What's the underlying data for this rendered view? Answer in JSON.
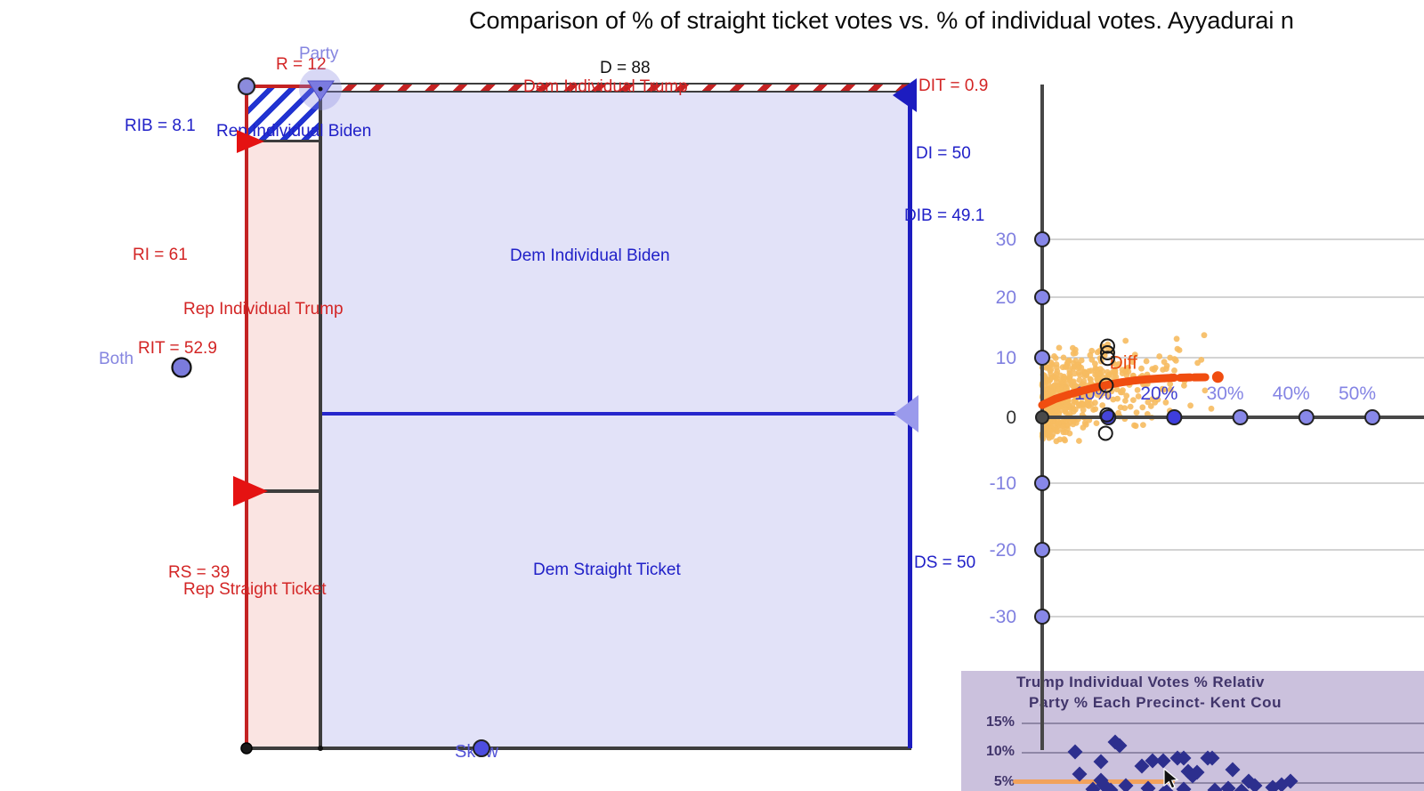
{
  "title": "Comparison of % of straight ticket votes vs. % of individual votes. Ayyadurai n",
  "mosaic": {
    "values": {
      "r": "R = 12",
      "d": "D = 88",
      "rib": "RIB = 8.1",
      "ri": "RI = 61",
      "rit": "RIT = 52.9",
      "rs": "RS = 39",
      "dit": "DIT = 0.9",
      "di": "DI = 50",
      "dib": "DIB = 49.1",
      "ds": "DS = 50"
    },
    "regions": {
      "dem_individual_trump": "Dem Individual Trump",
      "rep_individual_biden": "Rep Individual Biden",
      "dem_individual_biden": "Dem Individual Biden",
      "rep_individual_trump": "Rep Individual Trump",
      "dem_straight_ticket": "Dem Straight Ticket",
      "rep_straight_ticket": "Rep Straight Ticket"
    },
    "sliders": {
      "party": "Party",
      "both": "Both",
      "skew": "Skew"
    },
    "colors": {
      "rep_fill": "#fae4e2",
      "dem_fill": "#e2e2f8",
      "rep_line": "#c42222",
      "dem_line": "#1c1cc0",
      "rep_label": "#d32525",
      "dem_label": "#2020c8",
      "slider_label": "#8585e0"
    }
  },
  "chart_data": [
    {
      "id": "diff_vs_pct",
      "type": "scatter",
      "xlabel": "",
      "ylabel": "",
      "xlim": [
        0,
        58
      ],
      "ylim": [
        -54,
        54
      ],
      "grid": "horizontal",
      "x_ticks": [
        {
          "label": "10%",
          "value": 10,
          "color": "#4545d8",
          "label_color": "#3c3cd0"
        },
        {
          "label": "20%",
          "value": 20,
          "color": "#3e3ede",
          "label_color": "#3c3cd0"
        },
        {
          "label": "30%",
          "value": 30,
          "color": "#8888e8",
          "label_color": "#8484e4"
        },
        {
          "label": "40%",
          "value": 40,
          "color": "#8888e8",
          "label_color": "#8484e4"
        },
        {
          "label": "50%",
          "value": 50,
          "color": "#8888e8",
          "label_color": "#8484e4"
        }
      ],
      "y_ticks": [
        {
          "label": "30",
          "value": 30
        },
        {
          "label": "20",
          "value": 20
        },
        {
          "label": "10",
          "value": 10
        },
        {
          "label": "0",
          "value": 0
        },
        {
          "label": "-10",
          "value": -10
        },
        {
          "label": "-20",
          "value": -20
        },
        {
          "label": "-30",
          "value": -30
        }
      ],
      "series": [
        {
          "name": "precinct cloud",
          "style": "cloud",
          "color": "#f6bb60",
          "count": 560,
          "x_mean_pct": 6.3,
          "x_max_pct": 27,
          "y_noise_sd": 3.3,
          "seed": 7
        },
        {
          "name": "Diff",
          "style": "trend",
          "color": "#f04d10",
          "solid": [
            [
              0,
              2.0
            ],
            [
              2,
              3.0
            ],
            [
              4,
              3.7
            ],
            [
              6,
              4.3
            ],
            [
              8,
              4.85
            ],
            [
              10,
              5.3
            ],
            [
              12,
              5.7
            ],
            [
              14,
              6.0
            ],
            [
              16,
              6.2
            ],
            [
              18,
              6.35
            ],
            [
              20,
              6.45
            ]
          ],
          "dashes": [
            [
              [
                20.9,
                6.45
              ],
              [
                22.4,
                6.5
              ]
            ],
            [
              [
                23.0,
                6.5
              ],
              [
                24.7,
                6.52
              ]
            ]
          ],
          "end_dot": [
            26.6,
            6.55
          ]
        },
        {
          "name": "highlighted precincts",
          "style": "open_circle",
          "color": "#1a1a1a",
          "points": [
            [
              9.9,
              11.6
            ],
            [
              9.9,
              10.5
            ],
            [
              9.9,
              9.6
            ],
            [
              9.7,
              5.2
            ],
            [
              9.8,
              0.4
            ],
            [
              9.6,
              -2.6
            ]
          ]
        }
      ],
      "annotations": [
        {
          "text": "Diff",
          "color": "#e8490f",
          "x": 10.2,
          "y": 7.9
        }
      ]
    },
    {
      "id": "inset_reference_image",
      "type": "scatter",
      "title": "Trump Individual Votes % Relativ",
      "subtitle": "Party % Each Precinct- Kent Cou",
      "y_ticks": [
        "15%",
        "10%",
        "5%"
      ],
      "marker": "diamond",
      "marker_color": "#2d2f8e",
      "background": "#cbc1dd",
      "ref_line": {
        "color": "#f2a25b",
        "y_pct": 5
      },
      "points_x_y_pct": [
        [
          128,
          10.0
        ],
        [
          157,
          8.4
        ],
        [
          173,
          11.6
        ],
        [
          178,
          11.1
        ],
        [
          133,
          6.3
        ],
        [
          157,
          5.3
        ],
        [
          160,
          4.6
        ],
        [
          185,
          4.4
        ],
        [
          203,
          7.6
        ],
        [
          215,
          8.6
        ],
        [
          227,
          8.6
        ],
        [
          243,
          8.9
        ],
        [
          250,
          9.0
        ],
        [
          255,
          6.8
        ],
        [
          260,
          6.0
        ],
        [
          265,
          6.6
        ],
        [
          277,
          9.0
        ],
        [
          282,
          8.9
        ],
        [
          305,
          7.0
        ],
        [
          323,
          5.1
        ],
        [
          330,
          4.4
        ],
        [
          350,
          4.1
        ],
        [
          360,
          4.6
        ],
        [
          370,
          5.1
        ],
        [
          148,
          3.8
        ],
        [
          168,
          3.7
        ],
        [
          210,
          3.9
        ],
        [
          230,
          3.6
        ],
        [
          250,
          3.8
        ],
        [
          285,
          3.7
        ],
        [
          300,
          4.0
        ],
        [
          315,
          3.5
        ]
      ]
    }
  ]
}
